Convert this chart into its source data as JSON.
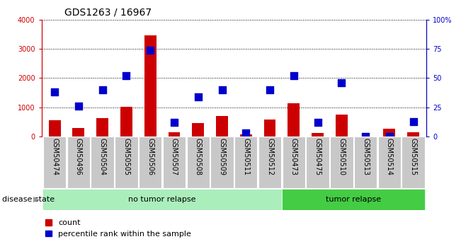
{
  "title": "GDS1263 / 16967",
  "samples": [
    "GSM50474",
    "GSM50496",
    "GSM50504",
    "GSM50505",
    "GSM50506",
    "GSM50507",
    "GSM50508",
    "GSM50509",
    "GSM50511",
    "GSM50512",
    "GSM50473",
    "GSM50475",
    "GSM50510",
    "GSM50513",
    "GSM50514",
    "GSM50515"
  ],
  "counts": [
    550,
    290,
    630,
    1010,
    3450,
    160,
    460,
    700,
    70,
    590,
    1150,
    130,
    750,
    5,
    260,
    150
  ],
  "percentiles": [
    38,
    26,
    40,
    52,
    74,
    12,
    34,
    40,
    3,
    40,
    52,
    12,
    46,
    0,
    0,
    13
  ],
  "no_tumor_count": 10,
  "tumor_count": 6,
  "ylim_left": [
    0,
    4000
  ],
  "ylim_right": [
    0,
    100
  ],
  "bar_color": "#cc0000",
  "dot_color": "#0000cc",
  "bg_color": "#ffffff",
  "tick_bg": "#c8c8c8",
  "no_tumor_color": "#aaeebb",
  "tumor_color": "#44cc44",
  "left_tick_color": "#cc0000",
  "right_tick_color": "#0000cc",
  "title_fontsize": 10,
  "tick_fontsize": 7,
  "label_fontsize": 8,
  "legend_fontsize": 8,
  "disease_state_label": "disease state",
  "no_tumor_label": "no tumor relapse",
  "tumor_label": "tumor relapse",
  "count_legend": "count",
  "percentile_legend": "percentile rank within the sample"
}
